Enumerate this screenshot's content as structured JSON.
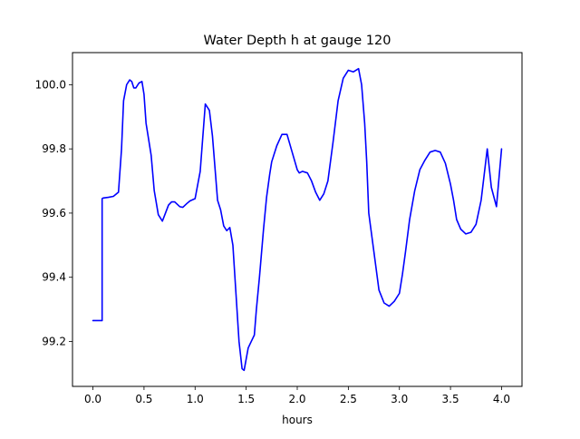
{
  "chart_data": {
    "type": "line",
    "title": "Water Depth h at gauge 120",
    "xlabel": "hours",
    "ylabel": "",
    "xlim": [
      -0.2,
      4.2
    ],
    "ylim": [
      99.06,
      100.1
    ],
    "xticks": [
      0.0,
      0.5,
      1.0,
      1.5,
      2.0,
      2.5,
      3.0,
      3.5,
      4.0
    ],
    "xtick_labels": [
      "0.0",
      "0.5",
      "1.0",
      "1.5",
      "2.0",
      "2.5",
      "3.0",
      "3.5",
      "4.0"
    ],
    "yticks": [
      99.2,
      99.4,
      99.6,
      99.8,
      100.0
    ],
    "ytick_labels": [
      "99.2",
      "99.4",
      "99.6",
      "99.8",
      "100.0"
    ],
    "grid": false,
    "line_color": "#0000ff",
    "series": [
      {
        "x": [
          0.0,
          0.09,
          0.09,
          0.1,
          0.15,
          0.2,
          0.25,
          0.28,
          0.3,
          0.33,
          0.36,
          0.38,
          0.4,
          0.42,
          0.45,
          0.48,
          0.5,
          0.52,
          0.54,
          0.57,
          0.6,
          0.64,
          0.68,
          0.71,
          0.74,
          0.77,
          0.8,
          0.85,
          0.88,
          0.92,
          0.95,
          1.0,
          1.05,
          1.1,
          1.14,
          1.17,
          1.2,
          1.22,
          1.25,
          1.28,
          1.31,
          1.34,
          1.37,
          1.4,
          1.43,
          1.46,
          1.48,
          1.52,
          1.55,
          1.58,
          1.6,
          1.63,
          1.67,
          1.7,
          1.73,
          1.75,
          1.8,
          1.85,
          1.9,
          1.95,
          2.0,
          2.02,
          2.05,
          2.1,
          2.14,
          2.18,
          2.22,
          2.26,
          2.3,
          2.35,
          2.4,
          2.45,
          2.5,
          2.55,
          2.6,
          2.63,
          2.66,
          2.68,
          2.7,
          2.75,
          2.8,
          2.85,
          2.9,
          2.95,
          3.0,
          3.03,
          3.06,
          3.1,
          3.15,
          3.2,
          3.25,
          3.3,
          3.35,
          3.4,
          3.45,
          3.5,
          3.53,
          3.56,
          3.6,
          3.65,
          3.7,
          3.75,
          3.8,
          3.83,
          3.86,
          3.9,
          3.95,
          4.0
        ],
        "y": [
          99.265,
          99.265,
          99.645,
          99.647,
          99.649,
          99.652,
          99.665,
          99.8,
          99.95,
          100.0,
          100.015,
          100.01,
          99.99,
          99.99,
          100.005,
          100.01,
          99.97,
          99.88,
          99.84,
          99.78,
          99.67,
          99.595,
          99.575,
          99.6,
          99.625,
          99.635,
          99.635,
          99.62,
          99.618,
          99.63,
          99.638,
          99.645,
          99.73,
          99.94,
          99.92,
          99.84,
          99.72,
          99.64,
          99.61,
          99.56,
          99.545,
          99.555,
          99.5,
          99.35,
          99.2,
          99.115,
          99.11,
          99.18,
          99.2,
          99.22,
          99.3,
          99.4,
          99.55,
          99.65,
          99.72,
          99.76,
          99.81,
          99.845,
          99.845,
          99.79,
          99.735,
          99.725,
          99.73,
          99.725,
          99.7,
          99.665,
          99.64,
          99.66,
          99.7,
          99.82,
          99.95,
          100.02,
          100.045,
          100.04,
          100.05,
          100.0,
          99.88,
          99.76,
          99.6,
          99.48,
          99.36,
          99.32,
          99.31,
          99.325,
          99.35,
          99.41,
          99.48,
          99.58,
          99.67,
          99.735,
          99.765,
          99.79,
          99.795,
          99.79,
          99.755,
          99.69,
          99.64,
          99.58,
          99.55,
          99.535,
          99.54,
          99.565,
          99.64,
          99.72,
          99.8,
          99.68,
          99.62,
          99.8
        ]
      }
    ]
  }
}
